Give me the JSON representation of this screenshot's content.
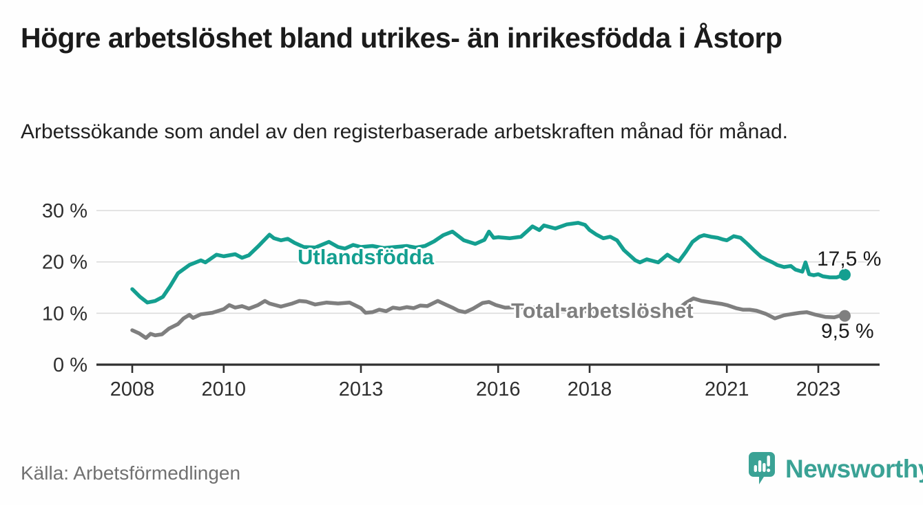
{
  "header": {
    "title": "Högre arbetslöshet bland utrikes- än inrikesfödda i Åstorp",
    "subtitle": "Arbetssökande som andel av den registerbaserade arbetskraften månad för månad."
  },
  "footer": {
    "source": "Källa: Arbetsförmedlingen",
    "brand_name": "Newsworthy",
    "brand_icon": "bar-chart-speech-bubble-icon"
  },
  "colors": {
    "accent_teal": "#149f90",
    "series_gray": "#7f7f7f",
    "grid": "#dcdcdc",
    "axis": "#2f2f2f",
    "title_text": "#1b1b1b",
    "source_text": "#717171",
    "logo_teal": "#3aa295"
  },
  "chart_data": {
    "type": "line",
    "x_unit": "year (monthly series)",
    "y_unit": "percent of registered labour force",
    "xlim": [
      2007.9,
      2023.9
    ],
    "ylim": [
      0,
      30
    ],
    "grid": "horizontal",
    "legend_position": "inline-labels",
    "x_ticks": [
      {
        "value": 2008,
        "label": "2008"
      },
      {
        "value": 2010,
        "label": "2010"
      },
      {
        "value": 2013,
        "label": "2013"
      },
      {
        "value": 2016,
        "label": "2016"
      },
      {
        "value": 2018,
        "label": "2018"
      },
      {
        "value": 2021,
        "label": "2021"
      },
      {
        "value": 2023,
        "label": "2023"
      }
    ],
    "y_ticks": [
      {
        "value": 0,
        "label": "0 %"
      },
      {
        "value": 10,
        "label": "10 %"
      },
      {
        "value": 20,
        "label": "20 %"
      },
      {
        "value": 30,
        "label": "30 %"
      }
    ],
    "series": [
      {
        "name": "utlandsfodda",
        "label": "Utlandsfödda",
        "color": "#149f90",
        "end_label": "17,5 %",
        "end_value": 17.5,
        "points": [
          [
            2008.0,
            14.7
          ],
          [
            2008.17,
            13.2
          ],
          [
            2008.33,
            12.1
          ],
          [
            2008.5,
            12.4
          ],
          [
            2008.67,
            13.2
          ],
          [
            2008.83,
            15.3
          ],
          [
            2009.0,
            17.8
          ],
          [
            2009.25,
            19.4
          ],
          [
            2009.5,
            20.3
          ],
          [
            2009.6,
            19.9
          ],
          [
            2009.84,
            21.4
          ],
          [
            2010.0,
            21.1
          ],
          [
            2010.25,
            21.5
          ],
          [
            2010.4,
            20.8
          ],
          [
            2010.55,
            21.3
          ],
          [
            2010.75,
            23.0
          ],
          [
            2011.0,
            25.3
          ],
          [
            2011.1,
            24.6
          ],
          [
            2011.25,
            24.2
          ],
          [
            2011.4,
            24.5
          ],
          [
            2011.55,
            23.7
          ],
          [
            2011.75,
            22.9
          ],
          [
            2012.0,
            22.8
          ],
          [
            2012.3,
            23.9
          ],
          [
            2012.5,
            22.9
          ],
          [
            2012.65,
            22.6
          ],
          [
            2012.83,
            23.3
          ],
          [
            2013.0,
            22.9
          ],
          [
            2013.25,
            23.1
          ],
          [
            2013.5,
            22.7
          ],
          [
            2013.75,
            22.9
          ],
          [
            2014.0,
            23.1
          ],
          [
            2014.2,
            22.8
          ],
          [
            2014.4,
            23.1
          ],
          [
            2014.6,
            24.0
          ],
          [
            2014.8,
            25.2
          ],
          [
            2015.0,
            25.9
          ],
          [
            2015.25,
            24.2
          ],
          [
            2015.5,
            23.5
          ],
          [
            2015.7,
            24.3
          ],
          [
            2015.8,
            25.9
          ],
          [
            2015.9,
            24.7
          ],
          [
            2016.0,
            24.8
          ],
          [
            2016.25,
            24.6
          ],
          [
            2016.5,
            24.9
          ],
          [
            2016.75,
            26.9
          ],
          [
            2016.9,
            26.2
          ],
          [
            2017.0,
            27.1
          ],
          [
            2017.25,
            26.5
          ],
          [
            2017.5,
            27.3
          ],
          [
            2017.75,
            27.6
          ],
          [
            2017.9,
            27.2
          ],
          [
            2018.0,
            26.2
          ],
          [
            2018.15,
            25.3
          ],
          [
            2018.3,
            24.6
          ],
          [
            2018.45,
            24.9
          ],
          [
            2018.6,
            24.2
          ],
          [
            2018.75,
            22.3
          ],
          [
            2019.0,
            20.3
          ],
          [
            2019.1,
            19.9
          ],
          [
            2019.25,
            20.5
          ],
          [
            2019.5,
            19.9
          ],
          [
            2019.7,
            21.4
          ],
          [
            2019.85,
            20.5
          ],
          [
            2019.95,
            20.1
          ],
          [
            2020.1,
            21.9
          ],
          [
            2020.25,
            23.9
          ],
          [
            2020.4,
            24.9
          ],
          [
            2020.5,
            25.2
          ],
          [
            2020.65,
            24.9
          ],
          [
            2020.8,
            24.7
          ],
          [
            2020.9,
            24.4
          ],
          [
            2021.0,
            24.2
          ],
          [
            2021.15,
            25.0
          ],
          [
            2021.3,
            24.7
          ],
          [
            2021.45,
            23.5
          ],
          [
            2021.6,
            22.2
          ],
          [
            2021.75,
            21.0
          ],
          [
            2021.9,
            20.3
          ],
          [
            2022.0,
            19.9
          ],
          [
            2022.1,
            19.4
          ],
          [
            2022.25,
            19.0
          ],
          [
            2022.4,
            19.2
          ],
          [
            2022.5,
            18.5
          ],
          [
            2022.65,
            18.1
          ],
          [
            2022.72,
            19.9
          ],
          [
            2022.8,
            17.6
          ],
          [
            2022.9,
            17.4
          ],
          [
            2023.0,
            17.6
          ],
          [
            2023.1,
            17.2
          ],
          [
            2023.25,
            17.0
          ],
          [
            2023.4,
            17.0
          ],
          [
            2023.58,
            17.5
          ]
        ]
      },
      {
        "name": "total-arbetsloshet",
        "label": "Total arbetslöshet",
        "color": "#7f7f7f",
        "end_label": "9,5 %",
        "end_value": 9.5,
        "points": [
          [
            2008.0,
            6.7
          ],
          [
            2008.15,
            6.1
          ],
          [
            2008.3,
            5.2
          ],
          [
            2008.4,
            6.0
          ],
          [
            2008.5,
            5.7
          ],
          [
            2008.65,
            5.9
          ],
          [
            2008.8,
            7.0
          ],
          [
            2009.0,
            7.9
          ],
          [
            2009.12,
            9.0
          ],
          [
            2009.25,
            9.7
          ],
          [
            2009.33,
            9.1
          ],
          [
            2009.5,
            9.8
          ],
          [
            2009.75,
            10.1
          ],
          [
            2010.0,
            10.8
          ],
          [
            2010.12,
            11.6
          ],
          [
            2010.25,
            11.1
          ],
          [
            2010.4,
            11.4
          ],
          [
            2010.55,
            10.9
          ],
          [
            2010.75,
            11.6
          ],
          [
            2010.9,
            12.4
          ],
          [
            2011.0,
            11.9
          ],
          [
            2011.25,
            11.3
          ],
          [
            2011.5,
            11.9
          ],
          [
            2011.65,
            12.4
          ],
          [
            2011.8,
            12.3
          ],
          [
            2012.0,
            11.7
          ],
          [
            2012.25,
            12.1
          ],
          [
            2012.5,
            11.9
          ],
          [
            2012.75,
            12.1
          ],
          [
            2013.0,
            11.0
          ],
          [
            2013.1,
            10.1
          ],
          [
            2013.25,
            10.2
          ],
          [
            2013.4,
            10.7
          ],
          [
            2013.55,
            10.4
          ],
          [
            2013.7,
            11.1
          ],
          [
            2013.85,
            10.9
          ],
          [
            2014.0,
            11.2
          ],
          [
            2014.15,
            11.0
          ],
          [
            2014.3,
            11.5
          ],
          [
            2014.45,
            11.4
          ],
          [
            2014.68,
            12.4
          ],
          [
            2014.85,
            11.7
          ],
          [
            2015.0,
            11.1
          ],
          [
            2015.13,
            10.5
          ],
          [
            2015.28,
            10.2
          ],
          [
            2015.45,
            10.9
          ],
          [
            2015.66,
            12.0
          ],
          [
            2015.8,
            12.2
          ],
          [
            2015.95,
            11.6
          ],
          [
            2016.15,
            11.1
          ],
          [
            2016.5,
            11.2
          ],
          [
            2017.0,
            11.0
          ],
          [
            2017.5,
            10.7
          ],
          [
            2018.0,
            10.4
          ],
          [
            2018.5,
            10.2
          ],
          [
            2019.0,
            10.0
          ],
          [
            2019.5,
            10.3
          ],
          [
            2019.9,
            10.6
          ],
          [
            2020.1,
            12.0
          ],
          [
            2020.27,
            12.9
          ],
          [
            2020.45,
            12.4
          ],
          [
            2020.6,
            12.2
          ],
          [
            2020.75,
            12.0
          ],
          [
            2020.9,
            11.8
          ],
          [
            2021.0,
            11.6
          ],
          [
            2021.2,
            11.0
          ],
          [
            2021.35,
            10.7
          ],
          [
            2021.5,
            10.7
          ],
          [
            2021.65,
            10.5
          ],
          [
            2021.85,
            9.9
          ],
          [
            2022.05,
            9.0
          ],
          [
            2022.25,
            9.6
          ],
          [
            2022.45,
            9.9
          ],
          [
            2022.6,
            10.1
          ],
          [
            2022.75,
            10.2
          ],
          [
            2022.95,
            9.7
          ],
          [
            2023.15,
            9.3
          ],
          [
            2023.35,
            9.2
          ],
          [
            2023.5,
            9.6
          ],
          [
            2023.58,
            9.5
          ]
        ]
      }
    ]
  }
}
